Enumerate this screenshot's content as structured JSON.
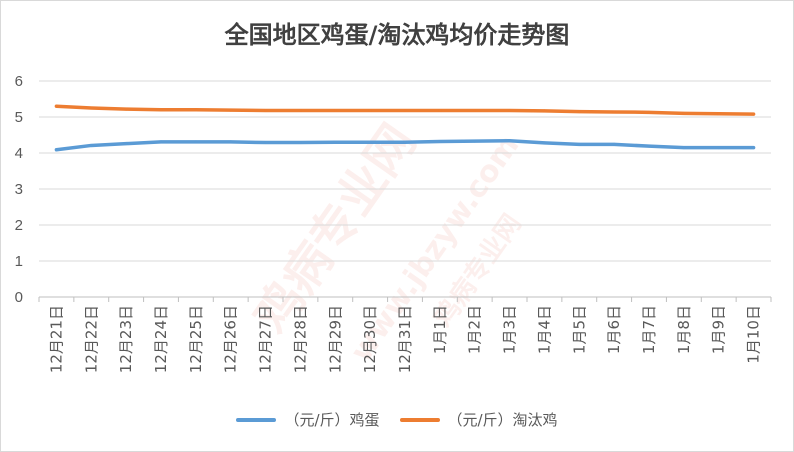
{
  "chart_data": {
    "type": "line",
    "title": "全国地区鸡蛋/淘汰鸡均价走势图",
    "categories": [
      "12月21日",
      "12月22日",
      "12月23日",
      "12月24日",
      "12月25日",
      "12月26日",
      "12月27日",
      "12月28日",
      "12月29日",
      "12月30日",
      "12月31日",
      "1月1日",
      "1月2日",
      "1月3日",
      "1月4日",
      "1月5日",
      "1月6日",
      "1月7日",
      "1月8日",
      "1月9日",
      "1月10日"
    ],
    "ylim": [
      0,
      6
    ],
    "yticks": [
      0,
      1,
      2,
      3,
      4,
      5,
      6
    ],
    "grid": true,
    "legend_position": "bottom",
    "series": [
      {
        "name": "（元/斤）鸡蛋",
        "color": "#5b9bd5",
        "values": [
          4.09,
          4.21,
          4.26,
          4.31,
          4.31,
          4.31,
          4.29,
          4.29,
          4.3,
          4.3,
          4.3,
          4.32,
          4.33,
          4.34,
          4.28,
          4.24,
          4.24,
          4.19,
          4.15,
          4.15,
          4.15
        ]
      },
      {
        "name": "（元/斤）淘汰鸡",
        "color": "#ed7d31",
        "values": [
          5.3,
          5.25,
          5.22,
          5.2,
          5.2,
          5.19,
          5.18,
          5.18,
          5.18,
          5.18,
          5.18,
          5.18,
          5.18,
          5.18,
          5.17,
          5.15,
          5.14,
          5.13,
          5.1,
          5.09,
          5.08
        ]
      }
    ]
  },
  "watermark": {
    "text_1": "鸡病专业网",
    "text_2": "www.jbzyw.com",
    "text_3": "鸡病专业网"
  }
}
